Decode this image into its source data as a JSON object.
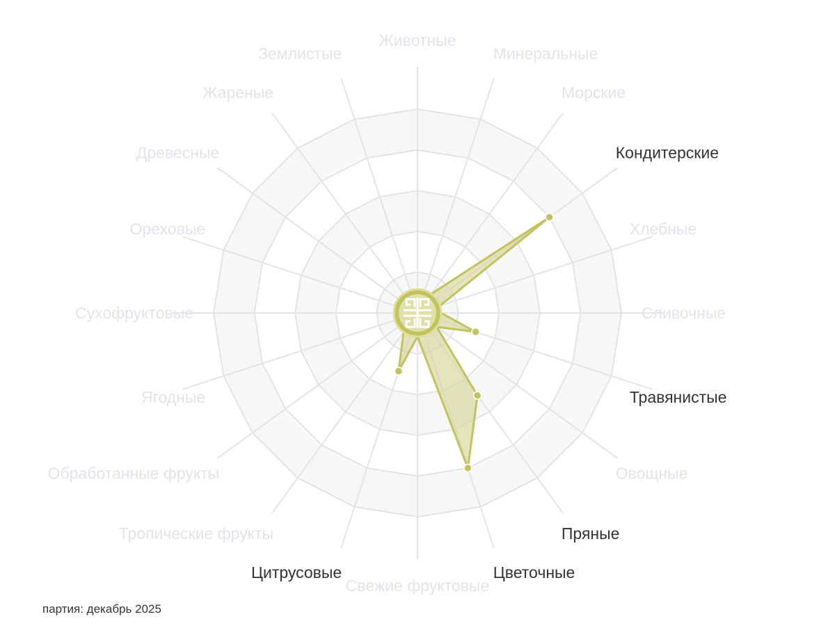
{
  "chart_data": {
    "type": "radar",
    "axes": [
      "Животные",
      "Минеральные",
      "Морские",
      "Кондитерские",
      "Хлебные",
      "Сливочные",
      "Травянистые",
      "Овощные",
      "Пряные",
      "Цветочные",
      "Свежие фруктовые",
      "Цитрусовые",
      "Тропические фрукты",
      "Обработанные фрукты",
      "Ягодные",
      "Сухофруктовые",
      "Ореховые",
      "Древесные",
      "Жареные",
      "Землистые"
    ],
    "values": [
      0,
      0,
      0,
      4,
      0,
      0,
      1.5,
      0,
      2.5,
      4,
      0,
      1.5,
      0,
      0,
      0,
      0,
      0,
      0,
      0,
      0
    ],
    "rlim": [
      0,
      5
    ],
    "rings": [
      1,
      2,
      3,
      4,
      5
    ],
    "grid": true,
    "colors": {
      "series": "#c2c25e",
      "fill": "#d6d69a",
      "label_active": "#333333",
      "label_inactive": "#e3e3ea",
      "grid": "#e4e4e8",
      "band": "#f7f7f8"
    }
  },
  "footer": "партия: декабрь 2025",
  "center_icon": "shou-longevity-symbol-icon"
}
